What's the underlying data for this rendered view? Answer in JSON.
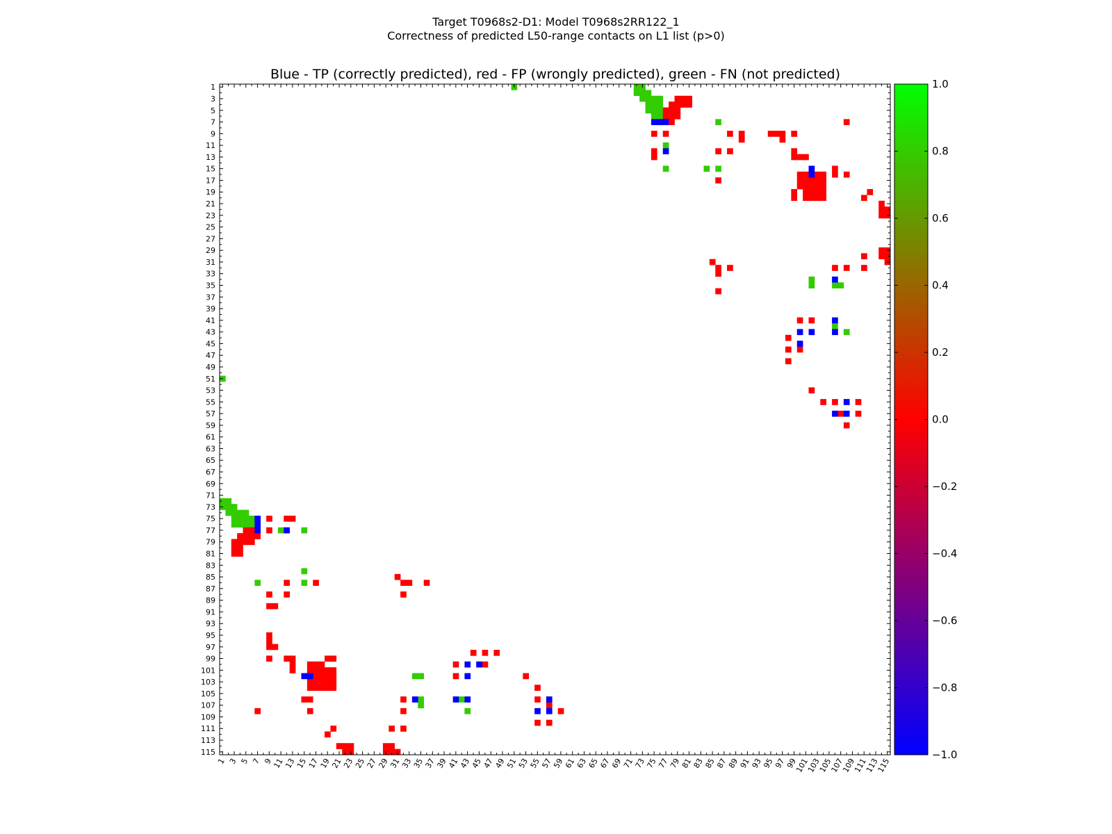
{
  "title_lines": [
    "Target T0968s2-D1: Model T0968s2RR122_1",
    "Correctness of predicted L50-range contacts on L1 list (p>0)"
  ],
  "chart_data": {
    "type": "heatmap",
    "subtitle": "Blue - TP (correctly predicted), red - FP (wrongly predicted), green - FN (not predicted)",
    "n": 115,
    "tick_labels": [
      "1",
      "3",
      "5",
      "7",
      "9",
      "11",
      "13",
      "15",
      "17",
      "19",
      "21",
      "23",
      "25",
      "27",
      "29",
      "31",
      "33",
      "35",
      "37",
      "39",
      "41",
      "43",
      "45",
      "47",
      "49",
      "51",
      "53",
      "55",
      "57",
      "59",
      "61",
      "63",
      "65",
      "67",
      "69",
      "71",
      "73",
      "75",
      "77",
      "79",
      "81",
      "83",
      "85",
      "87",
      "89",
      "91",
      "93",
      "95",
      "97",
      "99",
      "101",
      "103",
      "105",
      "107",
      "109",
      "111",
      "113",
      "115"
    ],
    "colorbar": {
      "min": -1.0,
      "max": 1.0,
      "ticks": [
        "1.0",
        "0.8",
        "0.6",
        "0.4",
        "0.2",
        "0.0",
        "−0.2",
        "−0.4",
        "−0.6",
        "−0.8",
        "−1.0"
      ],
      "stops": [
        "#0000ff",
        "#ff0000",
        "#00ff00"
      ]
    },
    "colors": {
      "tp": "#0000ff",
      "fp": "#ff0000",
      "fn": "#33cc00"
    },
    "fn_cells": [
      [
        1,
        51
      ],
      [
        1,
        72
      ],
      [
        1,
        73
      ],
      [
        2,
        72
      ],
      [
        2,
        73
      ],
      [
        2,
        74
      ],
      [
        3,
        73
      ],
      [
        3,
        74
      ],
      [
        3,
        75
      ],
      [
        3,
        76
      ],
      [
        4,
        74
      ],
      [
        4,
        75
      ],
      [
        4,
        76
      ],
      [
        5,
        74
      ],
      [
        5,
        75
      ],
      [
        5,
        76
      ],
      [
        5,
        77
      ],
      [
        6,
        75
      ],
      [
        6,
        76
      ],
      [
        6,
        77
      ],
      [
        7,
        86
      ],
      [
        11,
        77
      ],
      [
        15,
        77
      ],
      [
        15,
        84
      ],
      [
        15,
        86
      ],
      [
        34,
        102
      ],
      [
        35,
        102
      ],
      [
        35,
        106
      ],
      [
        35,
        107
      ],
      [
        42,
        106
      ],
      [
        43,
        108
      ]
    ],
    "tp_cells": [
      [
        7,
        75
      ],
      [
        7,
        76
      ],
      [
        7,
        77
      ],
      [
        12,
        77
      ],
      [
        15,
        102
      ],
      [
        16,
        102
      ],
      [
        34,
        106
      ],
      [
        41,
        106
      ],
      [
        43,
        100
      ],
      [
        43,
        102
      ],
      [
        43,
        106
      ],
      [
        45,
        100
      ],
      [
        55,
        108
      ],
      [
        57,
        106
      ],
      [
        57,
        108
      ]
    ],
    "fp_cells": [
      [
        3,
        79
      ],
      [
        3,
        80
      ],
      [
        3,
        81
      ],
      [
        4,
        78
      ],
      [
        4,
        79
      ],
      [
        4,
        80
      ],
      [
        4,
        81
      ],
      [
        5,
        77
      ],
      [
        5,
        78
      ],
      [
        5,
        79
      ],
      [
        6,
        77
      ],
      [
        6,
        78
      ],
      [
        6,
        79
      ],
      [
        7,
        78
      ],
      [
        7,
        108
      ],
      [
        9,
        75
      ],
      [
        9,
        77
      ],
      [
        9,
        88
      ],
      [
        9,
        90
      ],
      [
        9,
        95
      ],
      [
        9,
        96
      ],
      [
        9,
        97
      ],
      [
        9,
        99
      ],
      [
        10,
        90
      ],
      [
        10,
        97
      ],
      [
        12,
        75
      ],
      [
        12,
        86
      ],
      [
        12,
        88
      ],
      [
        12,
        99
      ],
      [
        13,
        75
      ],
      [
        13,
        99
      ],
      [
        13,
        100
      ],
      [
        13,
        101
      ],
      [
        15,
        106
      ],
      [
        16,
        100
      ],
      [
        16,
        101
      ],
      [
        16,
        103
      ],
      [
        16,
        104
      ],
      [
        16,
        106
      ],
      [
        16,
        108
      ],
      [
        17,
        86
      ],
      [
        17,
        100
      ],
      [
        17,
        101
      ],
      [
        17,
        102
      ],
      [
        17,
        103
      ],
      [
        17,
        104
      ],
      [
        18,
        100
      ],
      [
        18,
        101
      ],
      [
        18,
        102
      ],
      [
        18,
        103
      ],
      [
        18,
        104
      ],
      [
        19,
        99
      ],
      [
        19,
        101
      ],
      [
        19,
        102
      ],
      [
        19,
        103
      ],
      [
        19,
        104
      ],
      [
        19,
        112
      ],
      [
        20,
        99
      ],
      [
        20,
        101
      ],
      [
        20,
        102
      ],
      [
        20,
        103
      ],
      [
        20,
        104
      ],
      [
        20,
        111
      ],
      [
        21,
        114
      ],
      [
        22,
        114
      ],
      [
        22,
        115
      ],
      [
        23,
        114
      ],
      [
        23,
        115
      ],
      [
        29,
        114
      ],
      [
        29,
        115
      ],
      [
        30,
        111
      ],
      [
        30,
        114
      ],
      [
        30,
        115
      ],
      [
        31,
        85
      ],
      [
        31,
        115
      ],
      [
        32,
        86
      ],
      [
        32,
        88
      ],
      [
        32,
        106
      ],
      [
        32,
        108
      ],
      [
        32,
        111
      ],
      [
        33,
        86
      ],
      [
        36,
        86
      ],
      [
        41,
        100
      ],
      [
        41,
        102
      ],
      [
        44,
        98
      ],
      [
        46,
        98
      ],
      [
        46,
        100
      ],
      [
        48,
        98
      ],
      [
        53,
        102
      ],
      [
        55,
        104
      ],
      [
        55,
        106
      ],
      [
        55,
        110
      ],
      [
        57,
        107
      ],
      [
        57,
        110
      ],
      [
        59,
        108
      ]
    ]
  }
}
